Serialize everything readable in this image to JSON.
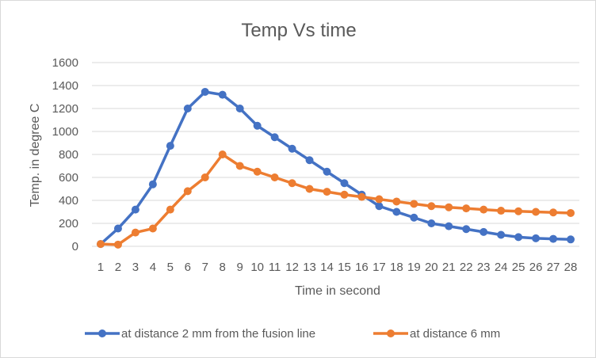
{
  "chart_data": {
    "type": "line",
    "title": "Temp Vs time",
    "xlabel": "Time in second",
    "ylabel": "Temp. in degree C",
    "categories": [
      "1",
      "2",
      "3",
      "4",
      "5",
      "6",
      "7",
      "8",
      "9",
      "10",
      "11",
      "12",
      "13",
      "14",
      "15",
      "16",
      "17",
      "18",
      "19",
      "20",
      "21",
      "22",
      "23",
      "24",
      "25",
      "26",
      "27",
      "28"
    ],
    "ylim": [
      0,
      1600
    ],
    "yticks": [
      "0",
      "200",
      "400",
      "600",
      "800",
      "1000",
      "1200",
      "1400",
      "1600"
    ],
    "grid": true,
    "legend_position": "bottom",
    "series": [
      {
        "name": "at distance 2 mm from the fusion line",
        "color": "#4472c4",
        "values": [
          20,
          155,
          320,
          540,
          875,
          1200,
          1345,
          1320,
          1200,
          1050,
          950,
          850,
          750,
          650,
          550,
          450,
          350,
          300,
          250,
          200,
          175,
          150,
          125,
          100,
          80,
          70,
          65,
          60
        ]
      },
      {
        "name": "at distance 6 mm",
        "color": "#ed7d31",
        "values": [
          20,
          15,
          120,
          155,
          320,
          480,
          600,
          800,
          700,
          650,
          600,
          550,
          500,
          475,
          450,
          430,
          410,
          390,
          370,
          350,
          340,
          330,
          320,
          310,
          305,
          300,
          295,
          290
        ]
      }
    ]
  }
}
